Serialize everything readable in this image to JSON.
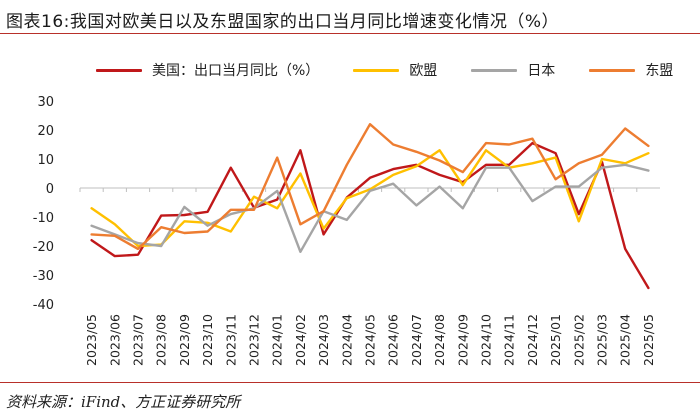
{
  "header": {
    "title": "图表16:我国对欧美日以及东盟国家的出口当月同比增速变化情况（%）"
  },
  "footer": {
    "source": "资料来源：iFind、方正证券研究所"
  },
  "colors": {
    "accent_rule": "#b8302a"
  },
  "chart_data": {
    "type": "line",
    "title": "",
    "xlabel": "",
    "ylabel": "",
    "ylim": [
      -40,
      30
    ],
    "yticks": [
      30,
      20,
      10,
      0,
      -10,
      -20,
      -30,
      -40
    ],
    "grid": false,
    "legend_position": "top",
    "categories": [
      "2023/05",
      "2023/06",
      "2023/07",
      "2023/08",
      "2023/09",
      "2023/10",
      "2023/11",
      "2023/12",
      "2024/01",
      "2024/02",
      "2024/03",
      "2024/04",
      "2024/05",
      "2024/06",
      "2024/07",
      "2024/08",
      "2024/09",
      "2024/10",
      "2024/11",
      "2024/12",
      "2025/01",
      "2025/02",
      "2025/03",
      "2025/04",
      "2025/05"
    ],
    "x_tick_labels": [
      "2023/05",
      "2023/06",
      "2023/07",
      "2023/08",
      "2023/09",
      "2023/10",
      "2023/11",
      "2023/12",
      "2024/01",
      "2024/02",
      "2024/03",
      "2024/04",
      "2024/05",
      "2024/06",
      "2024/07",
      "2024/08",
      "2024/09",
      "2024/10",
      "2024/11",
      "2024/12",
      "2025/01",
      "2025/02",
      "2025/03",
      "2025/04",
      "2025/05"
    ],
    "series": [
      {
        "name": "美国：出口当月同比（%）",
        "color": "#c0181a",
        "values": [
          -18,
          -23.5,
          -23,
          -9.5,
          -9.3,
          -8.2,
          7.0,
          -6.8,
          -4.0,
          13.0,
          -16.0,
          -3.3,
          3.5,
          6.5,
          8.0,
          4.5,
          2.0,
          8.0,
          8.0,
          15.5,
          12.0,
          -9.0,
          9.0,
          -21.0,
          -34.5
        ]
      },
      {
        "name": "欧盟",
        "color": "#ffc000",
        "values": [
          -7.0,
          -12.5,
          -20.0,
          -19.5,
          -11.5,
          -12.0,
          -15.0,
          -3.0,
          -7.0,
          5.0,
          -14.0,
          -3.5,
          -0.5,
          4.5,
          7.5,
          13.0,
          1.0,
          13.0,
          7.0,
          8.5,
          10.5,
          -11.5,
          10.0,
          8.5,
          12.0
        ]
      },
      {
        "name": "日本",
        "color": "#a5a5a5",
        "values": [
          -13.0,
          -16.0,
          -19.0,
          -20.0,
          -6.5,
          -13.0,
          -9.0,
          -7.0,
          -1.0,
          -22.0,
          -8.0,
          -11.0,
          -1.0,
          1.5,
          -6.0,
          0.5,
          -7.0,
          7.0,
          7.0,
          -4.5,
          0.5,
          0.5,
          7.0,
          8.0,
          6.0
        ]
      },
      {
        "name": "东盟",
        "color": "#ed7d31",
        "values": [
          -16.0,
          -16.5,
          -21.0,
          -13.5,
          -15.5,
          -15.0,
          -7.5,
          -7.5,
          10.5,
          -12.5,
          -8.0,
          8.0,
          22.0,
          15.0,
          12.5,
          9.5,
          5.5,
          15.5,
          15.0,
          17.0,
          3.0,
          8.5,
          11.5,
          20.5,
          14.5
        ]
      }
    ]
  }
}
